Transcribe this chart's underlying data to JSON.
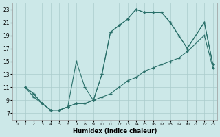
{
  "background_color": "#cce8e8",
  "grid_color": "#aacccc",
  "line_color": "#2a706a",
  "xlabel": "Humidex (Indice chaleur)",
  "xlim": [
    -0.5,
    23.5
  ],
  "ylim": [
    6.0,
    24.0
  ],
  "xticks": [
    0,
    1,
    2,
    3,
    4,
    5,
    6,
    7,
    8,
    9,
    10,
    11,
    12,
    13,
    14,
    15,
    16,
    17,
    18,
    19,
    20,
    21,
    22,
    23
  ],
  "yticks": [
    7,
    9,
    11,
    13,
    15,
    17,
    19,
    21,
    23
  ],
  "curve1_x": [
    1,
    2,
    3,
    4,
    5,
    6,
    7,
    8,
    9,
    10,
    11,
    12,
    13,
    14,
    15,
    16,
    17,
    18,
    19,
    20,
    22,
    23
  ],
  "curve1_y": [
    11,
    10,
    8.5,
    7.5,
    7.5,
    8,
    8.5,
    8.5,
    9,
    13,
    19.5,
    20.5,
    21.5,
    23,
    22.5,
    22.5,
    22.5,
    21,
    19,
    17,
    21,
    14.5
  ],
  "curve2_x": [
    1,
    2,
    3,
    4,
    5,
    6,
    7,
    8,
    9,
    10,
    11,
    12,
    13,
    14,
    15,
    16,
    17,
    18,
    19,
    20,
    22,
    23
  ],
  "curve2_y": [
    11,
    10,
    8.5,
    7.5,
    7.5,
    8,
    15,
    11,
    9,
    13,
    19.5,
    20.5,
    21.5,
    23,
    22.5,
    22.5,
    22.5,
    21,
    19,
    17,
    21,
    14.5
  ],
  "curve3_x": [
    1,
    2,
    3,
    4,
    5,
    6,
    7,
    8,
    9,
    10,
    11,
    12,
    13,
    14,
    15,
    16,
    17,
    18,
    19,
    20,
    22,
    23
  ],
  "curve3_y": [
    11,
    9.5,
    8.5,
    7.5,
    7.5,
    8,
    8.5,
    8.5,
    9,
    9.5,
    10,
    11,
    12,
    12.5,
    13.5,
    14,
    14.5,
    15,
    15.5,
    16.5,
    19,
    14
  ]
}
